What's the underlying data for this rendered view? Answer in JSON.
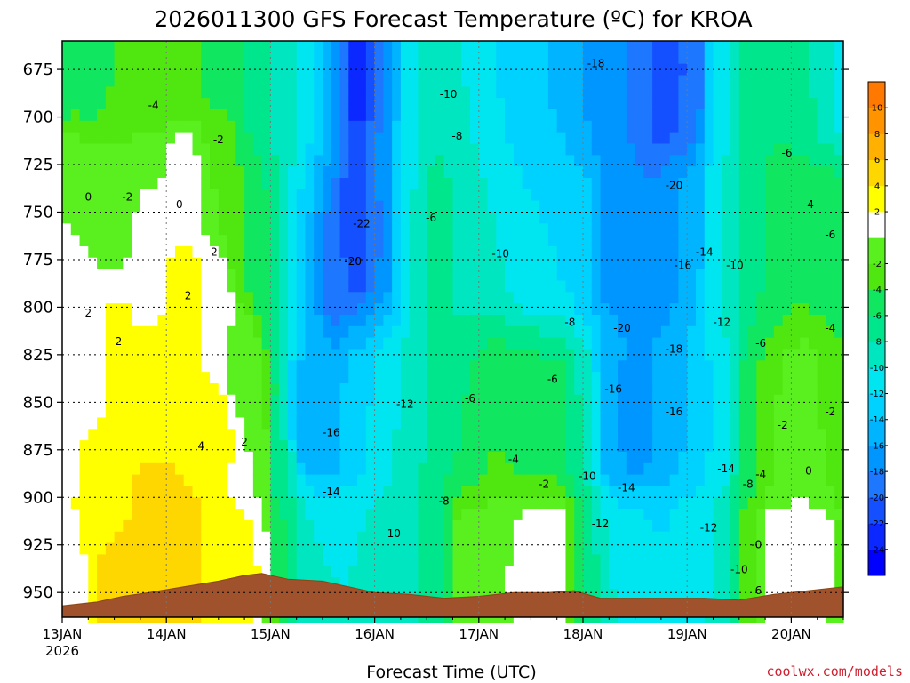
{
  "chart_data": {
    "type": "heatmap",
    "title": "2026011300 GFS Forecast Temperature (ºC) for KROA",
    "xlabel": "Forecast Time (UTC)",
    "ylabel": "",
    "credit": "coolwx.com/models",
    "x_ticks": [
      {
        "t": 0,
        "label": "13JAN",
        "sub": "2026"
      },
      {
        "t": 24,
        "label": "14JAN",
        "sub": ""
      },
      {
        "t": 48,
        "label": "15JAN",
        "sub": ""
      },
      {
        "t": 72,
        "label": "16JAN",
        "sub": ""
      },
      {
        "t": 96,
        "label": "17JAN",
        "sub": ""
      },
      {
        "t": 120,
        "label": "18JAN",
        "sub": ""
      },
      {
        "t": 144,
        "label": "19JAN",
        "sub": ""
      },
      {
        "t": 168,
        "label": "20JAN",
        "sub": ""
      }
    ],
    "x_range_hours": [
      0,
      180
    ],
    "y_range_hPa": [
      660,
      963
    ],
    "y_ticks": [
      "675",
      "700",
      "725",
      "750",
      "775",
      "800",
      "825",
      "850",
      "875",
      "900",
      "925",
      "950"
    ],
    "y_tick_values": [
      675,
      700,
      725,
      750,
      775,
      800,
      825,
      850,
      875,
      900,
      925,
      950
    ],
    "colorbar": {
      "levels": [
        -26,
        -24,
        -22,
        -20,
        -18,
        -16,
        -14,
        -12,
        -10,
        -8,
        -6,
        -4,
        -2,
        0,
        2,
        4,
        6,
        8,
        10,
        12
      ],
      "labels": [
        "-24",
        "-22",
        "-20",
        "-18",
        "-16",
        "-14",
        "-12",
        "-10",
        "-8",
        "-6",
        "-4",
        "-2",
        "2",
        "4",
        "6",
        "8",
        "10"
      ],
      "colors": [
        "#0000ff",
        "#0a28ff",
        "#1450ff",
        "#1e78ff",
        "#0096ff",
        "#00b4ff",
        "#00d2ff",
        "#00e6f0",
        "#00e6c0",
        "#00e68c",
        "#10e660",
        "#50e610",
        "#5af020",
        "#ffffff",
        "#ffff00",
        "#ffd700",
        "#ffb000",
        "#ff9400",
        "#ff7800"
      ]
    },
    "anchors": [
      {
        "t": 0,
        "p": 680,
        "v": -5
      },
      {
        "t": 0,
        "p": 730,
        "v": 0
      },
      {
        "t": 0,
        "p": 800,
        "v": 1
      },
      {
        "t": 0,
        "p": 880,
        "v": 0.5
      },
      {
        "t": 0,
        "p": 940,
        "v": 0
      },
      {
        "t": 6,
        "p": 680,
        "v": -5
      },
      {
        "t": 6,
        "p": 740,
        "v": 0
      },
      {
        "t": 6,
        "p": 820,
        "v": 0.5
      },
      {
        "t": 6,
        "p": 900,
        "v": 2.5
      },
      {
        "t": 12,
        "p": 680,
        "v": -4
      },
      {
        "t": 12,
        "p": 750,
        "v": -1
      },
      {
        "t": 12,
        "p": 820,
        "v": 2.5
      },
      {
        "t": 12,
        "p": 900,
        "v": 3.5
      },
      {
        "t": 12,
        "p": 945,
        "v": 5
      },
      {
        "t": 20,
        "p": 680,
        "v": -4
      },
      {
        "t": 20,
        "p": 740,
        "v": 0
      },
      {
        "t": 20,
        "p": 780,
        "v": 1.5
      },
      {
        "t": 20,
        "p": 850,
        "v": 3.5
      },
      {
        "t": 20,
        "p": 920,
        "v": 5.5
      },
      {
        "t": 28,
        "p": 680,
        "v": -3
      },
      {
        "t": 28,
        "p": 730,
        "v": 1
      },
      {
        "t": 28,
        "p": 790,
        "v": 2.5
      },
      {
        "t": 28,
        "p": 850,
        "v": 4
      },
      {
        "t": 28,
        "p": 930,
        "v": 5
      },
      {
        "t": 36,
        "p": 680,
        "v": -5
      },
      {
        "t": 36,
        "p": 720,
        "v": -2
      },
      {
        "t": 36,
        "p": 800,
        "v": 1
      },
      {
        "t": 36,
        "p": 870,
        "v": 2.5
      },
      {
        "t": 36,
        "p": 940,
        "v": 3.5
      },
      {
        "t": 42,
        "p": 680,
        "v": -6
      },
      {
        "t": 42,
        "p": 760,
        "v": -4
      },
      {
        "t": 42,
        "p": 830,
        "v": -1
      },
      {
        "t": 42,
        "p": 900,
        "v": 2
      },
      {
        "t": 42,
        "p": 940,
        "v": 3.5
      },
      {
        "t": 46,
        "p": 680,
        "v": -7
      },
      {
        "t": 46,
        "p": 780,
        "v": -5
      },
      {
        "t": 46,
        "p": 880,
        "v": -1
      },
      {
        "t": 46,
        "p": 935,
        "v": 2
      },
      {
        "t": 50,
        "p": 680,
        "v": -9
      },
      {
        "t": 50,
        "p": 780,
        "v": -8
      },
      {
        "t": 50,
        "p": 880,
        "v": -8
      },
      {
        "t": 50,
        "p": 935,
        "v": -6
      },
      {
        "t": 56,
        "p": 680,
        "v": -11
      },
      {
        "t": 56,
        "p": 780,
        "v": -14
      },
      {
        "t": 56,
        "p": 860,
        "v": -16
      },
      {
        "t": 56,
        "p": 935,
        "v": -10
      },
      {
        "t": 62,
        "p": 680,
        "v": -16
      },
      {
        "t": 62,
        "p": 780,
        "v": -19
      },
      {
        "t": 62,
        "p": 860,
        "v": -15
      },
      {
        "t": 62,
        "p": 935,
        "v": -10
      },
      {
        "t": 68,
        "p": 680,
        "v": -23
      },
      {
        "t": 68,
        "p": 760,
        "v": -22
      },
      {
        "t": 68,
        "p": 860,
        "v": -13
      },
      {
        "t": 68,
        "p": 935,
        "v": -10
      },
      {
        "t": 74,
        "p": 680,
        "v": -18
      },
      {
        "t": 74,
        "p": 760,
        "v": -18
      },
      {
        "t": 74,
        "p": 860,
        "v": -11
      },
      {
        "t": 74,
        "p": 935,
        "v": -9
      },
      {
        "t": 80,
        "p": 680,
        "v": -10
      },
      {
        "t": 80,
        "p": 760,
        "v": -10
      },
      {
        "t": 80,
        "p": 860,
        "v": -9
      },
      {
        "t": 80,
        "p": 935,
        "v": -9
      },
      {
        "t": 86,
        "p": 680,
        "v": -8
      },
      {
        "t": 86,
        "p": 760,
        "v": -6
      },
      {
        "t": 86,
        "p": 860,
        "v": -7
      },
      {
        "t": 86,
        "p": 935,
        "v": -7
      },
      {
        "t": 92,
        "p": 680,
        "v": -10
      },
      {
        "t": 92,
        "p": 760,
        "v": -9
      },
      {
        "t": 92,
        "p": 860,
        "v": -6
      },
      {
        "t": 92,
        "p": 935,
        "v": -1
      },
      {
        "t": 100,
        "p": 680,
        "v": -12
      },
      {
        "t": 100,
        "p": 760,
        "v": -10
      },
      {
        "t": 100,
        "p": 860,
        "v": -4
      },
      {
        "t": 100,
        "p": 935,
        "v": 0
      },
      {
        "t": 108,
        "p": 680,
        "v": -14
      },
      {
        "t": 108,
        "p": 760,
        "v": -12
      },
      {
        "t": 108,
        "p": 860,
        "v": -5
      },
      {
        "t": 108,
        "p": 935,
        "v": 1
      },
      {
        "t": 114,
        "p": 680,
        "v": -14
      },
      {
        "t": 114,
        "p": 760,
        "v": -12
      },
      {
        "t": 114,
        "p": 860,
        "v": -5
      },
      {
        "t": 114,
        "p": 935,
        "v": 2
      },
      {
        "t": 120,
        "p": 680,
        "v": -16
      },
      {
        "t": 120,
        "p": 760,
        "v": -13
      },
      {
        "t": 120,
        "p": 860,
        "v": -8
      },
      {
        "t": 120,
        "p": 935,
        "v": -6
      },
      {
        "t": 126,
        "p": 680,
        "v": -18
      },
      {
        "t": 126,
        "p": 760,
        "v": -18
      },
      {
        "t": 126,
        "p": 860,
        "v": -16
      },
      {
        "t": 126,
        "p": 935,
        "v": -10
      },
      {
        "t": 132,
        "p": 680,
        "v": -18
      },
      {
        "t": 132,
        "p": 760,
        "v": -18
      },
      {
        "t": 132,
        "p": 860,
        "v": -17
      },
      {
        "t": 132,
        "p": 935,
        "v": -11
      },
      {
        "t": 138,
        "p": 680,
        "v": -22
      },
      {
        "t": 138,
        "p": 760,
        "v": -18
      },
      {
        "t": 138,
        "p": 860,
        "v": -16
      },
      {
        "t": 138,
        "p": 935,
        "v": -12
      },
      {
        "t": 144,
        "p": 680,
        "v": -20
      },
      {
        "t": 144,
        "p": 760,
        "v": -15
      },
      {
        "t": 144,
        "p": 860,
        "v": -14
      },
      {
        "t": 144,
        "p": 935,
        "v": -11
      },
      {
        "t": 152,
        "p": 680,
        "v": -11
      },
      {
        "t": 152,
        "p": 760,
        "v": -10
      },
      {
        "t": 152,
        "p": 860,
        "v": -12
      },
      {
        "t": 152,
        "p": 935,
        "v": -10
      },
      {
        "t": 158,
        "p": 680,
        "v": -7
      },
      {
        "t": 158,
        "p": 760,
        "v": -7
      },
      {
        "t": 158,
        "p": 860,
        "v": -5
      },
      {
        "t": 158,
        "p": 935,
        "v": -3
      },
      {
        "t": 164,
        "p": 680,
        "v": -6
      },
      {
        "t": 164,
        "p": 760,
        "v": -5
      },
      {
        "t": 164,
        "p": 860,
        "v": -2
      },
      {
        "t": 164,
        "p": 935,
        "v": 1
      },
      {
        "t": 170,
        "p": 680,
        "v": -7
      },
      {
        "t": 170,
        "p": 760,
        "v": -4
      },
      {
        "t": 170,
        "p": 860,
        "v": 0
      },
      {
        "t": 170,
        "p": 935,
        "v": 1
      },
      {
        "t": 176,
        "p": 680,
        "v": -9
      },
      {
        "t": 176,
        "p": 760,
        "v": -5
      },
      {
        "t": 176,
        "p": 860,
        "v": -2
      },
      {
        "t": 176,
        "p": 935,
        "v": 1
      },
      {
        "t": 180,
        "p": 680,
        "v": -11
      },
      {
        "t": 180,
        "p": 760,
        "v": -6
      },
      {
        "t": 180,
        "p": 860,
        "v": -4
      },
      {
        "t": 180,
        "p": 935,
        "v": -3
      }
    ],
    "terrain_hPa": [
      {
        "t": 0,
        "p": 957
      },
      {
        "t": 8,
        "p": 955
      },
      {
        "t": 14,
        "p": 952
      },
      {
        "t": 20,
        "p": 950
      },
      {
        "t": 28,
        "p": 947
      },
      {
        "t": 36,
        "p": 944
      },
      {
        "t": 42,
        "p": 941
      },
      {
        "t": 46,
        "p": 940
      },
      {
        "t": 52,
        "p": 943
      },
      {
        "t": 60,
        "p": 944
      },
      {
        "t": 66,
        "p": 947
      },
      {
        "t": 72,
        "p": 950
      },
      {
        "t": 80,
        "p": 951
      },
      {
        "t": 88,
        "p": 953
      },
      {
        "t": 96,
        "p": 952
      },
      {
        "t": 104,
        "p": 950
      },
      {
        "t": 112,
        "p": 950
      },
      {
        "t": 118,
        "p": 949
      },
      {
        "t": 124,
        "p": 953
      },
      {
        "t": 132,
        "p": 953
      },
      {
        "t": 140,
        "p": 953
      },
      {
        "t": 148,
        "p": 953
      },
      {
        "t": 156,
        "p": 954
      },
      {
        "t": 164,
        "p": 951
      },
      {
        "t": 172,
        "p": 949
      },
      {
        "t": 180,
        "p": 947
      }
    ],
    "contour_labels": [
      {
        "text": "-4",
        "t": 21,
        "p": 694
      },
      {
        "text": "-2",
        "t": 36,
        "p": 712
      },
      {
        "text": "0",
        "t": 6,
        "p": 742
      },
      {
        "text": "-2",
        "t": 15,
        "p": 742
      },
      {
        "text": "0",
        "t": 27,
        "p": 746
      },
      {
        "text": "2",
        "t": 35,
        "p": 771
      },
      {
        "text": "2",
        "t": 29,
        "p": 794
      },
      {
        "text": "2",
        "t": 6,
        "p": 803
      },
      {
        "text": "2",
        "t": 13,
        "p": 818
      },
      {
        "text": "4",
        "t": 32,
        "p": 873
      },
      {
        "text": "2",
        "t": 42,
        "p": 871
      },
      {
        "text": "-10",
        "t": 89,
        "p": 688
      },
      {
        "text": "-18",
        "t": 123,
        "p": 672
      },
      {
        "text": "-8",
        "t": 91,
        "p": 710
      },
      {
        "text": "-22",
        "t": 69,
        "p": 756
      },
      {
        "text": "-6",
        "t": 85,
        "p": 753
      },
      {
        "text": "-20",
        "t": 67,
        "p": 776
      },
      {
        "text": "-10",
        "t": 101,
        "p": 772
      },
      {
        "text": "-20",
        "t": 141,
        "p": 736
      },
      {
        "text": "-16",
        "t": 143,
        "p": 778
      },
      {
        "text": "-14",
        "t": 148,
        "p": 771
      },
      {
        "text": "-10",
        "t": 155,
        "p": 778
      },
      {
        "text": "-6",
        "t": 167,
        "p": 719
      },
      {
        "text": "-4",
        "t": 172,
        "p": 746
      },
      {
        "text": "-6",
        "t": 177,
        "p": 762
      },
      {
        "text": "-8",
        "t": 117,
        "p": 808
      },
      {
        "text": "-20",
        "t": 129,
        "p": 811
      },
      {
        "text": "-12",
        "t": 152,
        "p": 808
      },
      {
        "text": "-18",
        "t": 141,
        "p": 822
      },
      {
        "text": "-6",
        "t": 161,
        "p": 819
      },
      {
        "text": "-4",
        "t": 177,
        "p": 811
      },
      {
        "text": "-6",
        "t": 113,
        "p": 838
      },
      {
        "text": "-16",
        "t": 127,
        "p": 843
      },
      {
        "text": "-12",
        "t": 79,
        "p": 851
      },
      {
        "text": "-6",
        "t": 94,
        "p": 848
      },
      {
        "text": "-16",
        "t": 141,
        "p": 855
      },
      {
        "text": "-16",
        "t": 62,
        "p": 866
      },
      {
        "text": "-4",
        "t": 104,
        "p": 880
      },
      {
        "text": "-2",
        "t": 111,
        "p": 893
      },
      {
        "text": "-10",
        "t": 121,
        "p": 889
      },
      {
        "text": "-14",
        "t": 130,
        "p": 895
      },
      {
        "text": "-14",
        "t": 153,
        "p": 885
      },
      {
        "text": "-4",
        "t": 161,
        "p": 888
      },
      {
        "text": "-2",
        "t": 166,
        "p": 862
      },
      {
        "text": "0",
        "t": 172,
        "p": 886
      },
      {
        "text": "-2",
        "t": 177,
        "p": 855
      },
      {
        "text": "-14",
        "t": 62,
        "p": 897
      },
      {
        "text": "-8",
        "t": 88,
        "p": 902
      },
      {
        "text": "-8",
        "t": 158,
        "p": 893
      },
      {
        "text": "-12",
        "t": 124,
        "p": 914
      },
      {
        "text": "-12",
        "t": 149,
        "p": 916
      },
      {
        "text": "-10",
        "t": 76,
        "p": 919
      },
      {
        "text": "-10",
        "t": 156,
        "p": 938
      },
      {
        "text": "-0",
        "t": 160,
        "p": 925
      },
      {
        "text": "-6",
        "t": 160,
        "p": 949
      }
    ]
  }
}
